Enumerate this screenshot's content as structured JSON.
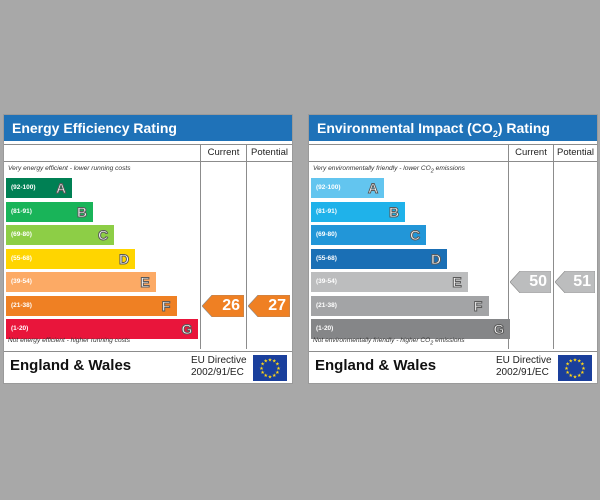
{
  "energy": {
    "title": "Energy Efficiency Rating",
    "col_current": "Current",
    "col_potential": "Potential",
    "top_note": "Very energy efficient - lower running costs",
    "bottom_note": "Not energy efficient - higher running costs",
    "bands": [
      {
        "range": "(92-100)",
        "letter": "A",
        "color": "#008054"
      },
      {
        "range": "(81-91)",
        "letter": "B",
        "color": "#19b459"
      },
      {
        "range": "(69-80)",
        "letter": "C",
        "color": "#8dce46"
      },
      {
        "range": "(55-68)",
        "letter": "D",
        "color": "#ffd500"
      },
      {
        "range": "(39-54)",
        "letter": "E",
        "color": "#fcaa65"
      },
      {
        "range": "(21-38)",
        "letter": "F",
        "color": "#ef8023"
      },
      {
        "range": "(1-20)",
        "letter": "G",
        "color": "#e9153b"
      }
    ],
    "current": {
      "value": "26",
      "band": "F",
      "color": "#ef8023"
    },
    "potential": {
      "value": "27",
      "band": "F",
      "color": "#ef8023"
    },
    "region": "England & Wales",
    "directive_line1": "EU Directive",
    "directive_line2": "2002/91/EC"
  },
  "environment": {
    "title_before": "Environmental Impact (CO",
    "title_sub": "2",
    "title_after": ") Rating",
    "col_current": "Current",
    "col_potential": "Potential",
    "top_note_before": "Very environmentally friendly - lower CO",
    "top_note_sub": "2",
    "top_note_after": " emissions",
    "bottom_note_before": "Not environmentally friendly - higher CO",
    "bottom_note_sub": "2",
    "bottom_note_after": " emissions",
    "bands": [
      {
        "range": "(92-100)",
        "letter": "A",
        "color": "#63c5ef"
      },
      {
        "range": "(81-91)",
        "letter": "B",
        "color": "#1fb2ea"
      },
      {
        "range": "(69-80)",
        "letter": "C",
        "color": "#2296d8"
      },
      {
        "range": "(55-68)",
        "letter": "D",
        "color": "#1a6fb5"
      },
      {
        "range": "(39-54)",
        "letter": "E",
        "color": "#bcbdbe"
      },
      {
        "range": "(21-38)",
        "letter": "F",
        "color": "#a3a4a6"
      },
      {
        "range": "(1-20)",
        "letter": "G",
        "color": "#858688"
      }
    ],
    "current": {
      "value": "50",
      "band": "E",
      "color": "#bcbdbe"
    },
    "potential": {
      "value": "51",
      "band": "E",
      "color": "#bcbdbe"
    },
    "region": "England & Wales",
    "directive_line1": "EU Directive",
    "directive_line2": "2002/91/EC"
  },
  "icons": {
    "flag": "eu-flag-icon"
  }
}
